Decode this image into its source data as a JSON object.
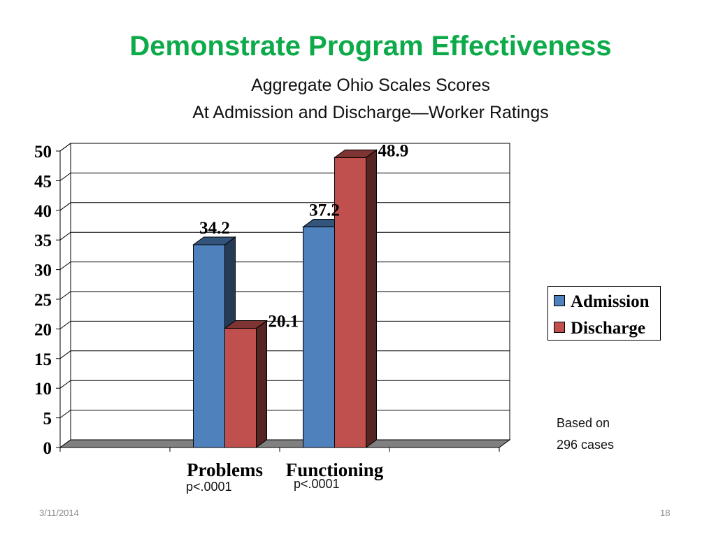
{
  "slide": {
    "title": "Demonstrate Program Effectiveness",
    "subtitle_line1": "Aggregate Ohio Scales Scores",
    "subtitle_line2": "At Admission and Discharge—Worker Ratings",
    "note_line1": "Based on",
    "note_line2": "296 cases",
    "date": "3/11/2014",
    "page_number": "18"
  },
  "chart_data": {
    "type": "bar",
    "categories": [
      "Problems",
      "Functioning"
    ],
    "category_notes": [
      "p<.0001",
      "p<.0001"
    ],
    "series": [
      {
        "name": "Admission",
        "values": [
          34.2,
          37.2
        ],
        "color": "#4f81bd"
      },
      {
        "name": "Discharge",
        "values": [
          20.1,
          48.9
        ],
        "color": "#c0504d"
      }
    ],
    "ylim": [
      0,
      50
    ],
    "yticks": [
      0,
      5,
      10,
      15,
      20,
      25,
      30,
      35,
      40,
      45,
      50
    ],
    "grid": true,
    "legend_position": "right",
    "style": "3d"
  }
}
